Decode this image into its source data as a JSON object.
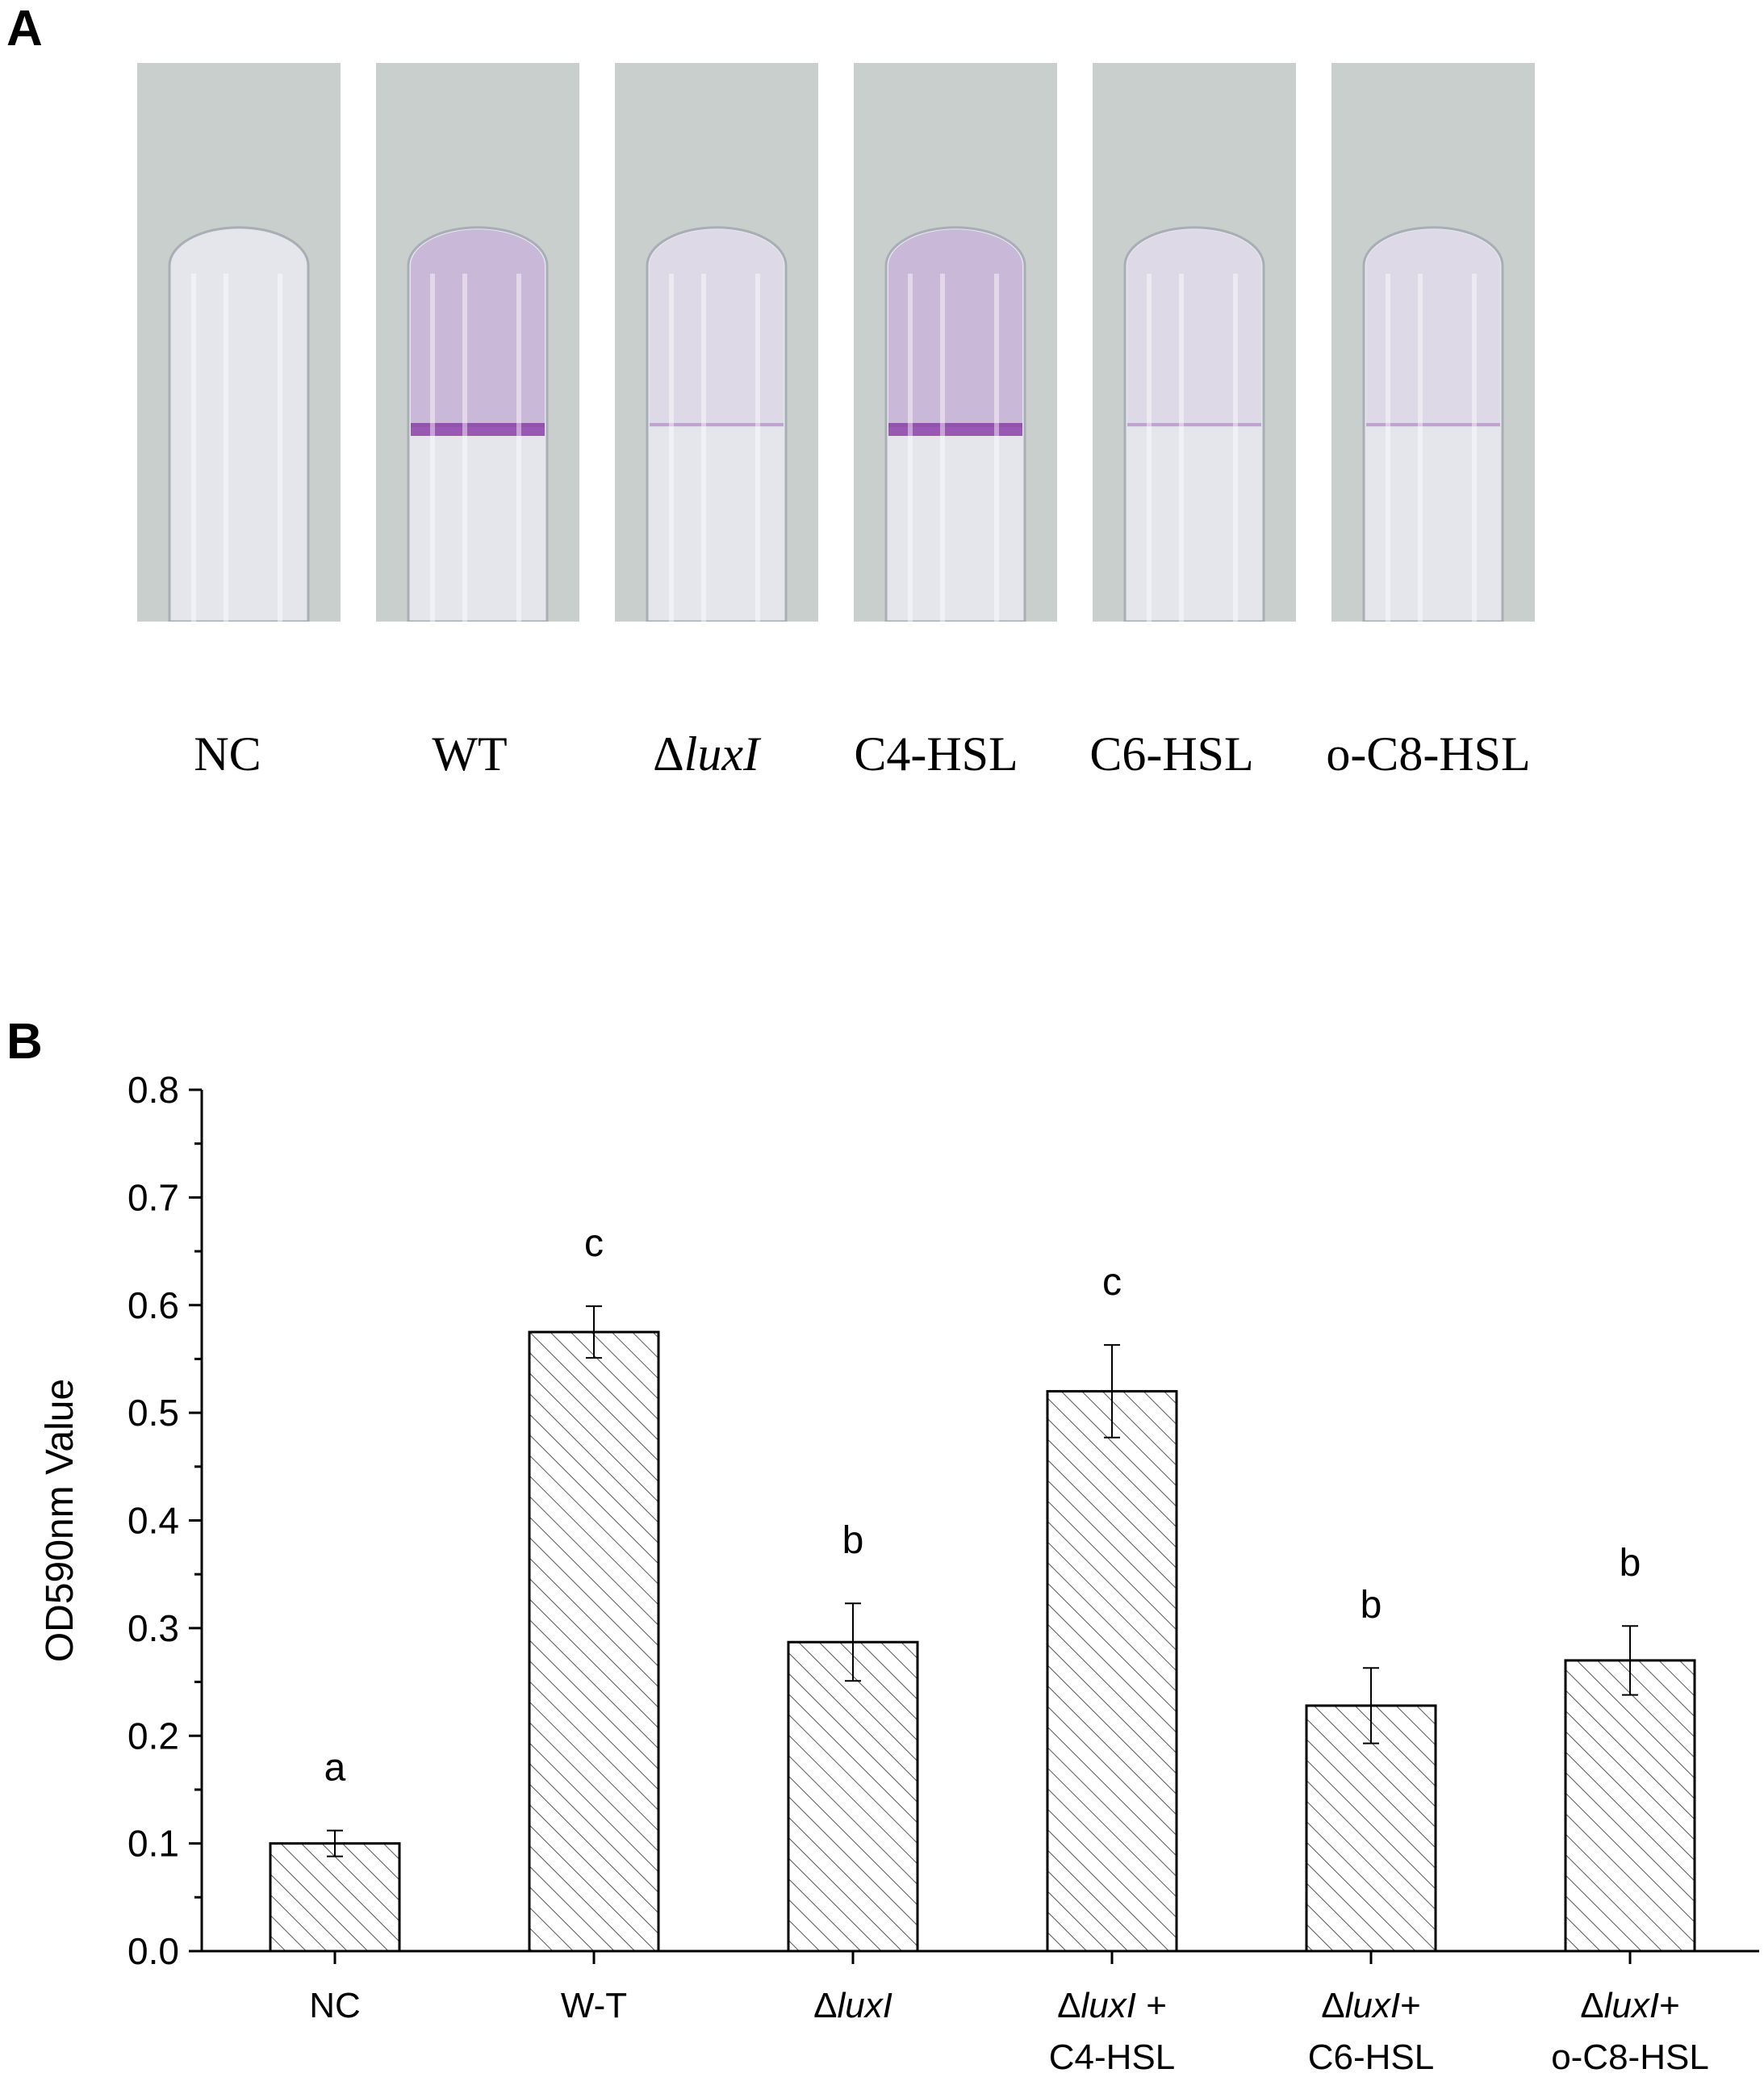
{
  "panel_a": {
    "letter": "A",
    "tubes": [
      {
        "label_prefix": "",
        "label_italic": "",
        "label": "NC",
        "stain": "none"
      },
      {
        "label_prefix": "",
        "label_italic": "",
        "label": "WT",
        "stain": "strong"
      },
      {
        "label_prefix": "Δ",
        "label_italic": "luxI",
        "label": "",
        "stain": "faint"
      },
      {
        "label_prefix": "",
        "label_italic": "",
        "label": "C4-HSL",
        "stain": "strong"
      },
      {
        "label_prefix": "",
        "label_italic": "",
        "label": "C6-HSL",
        "stain": "faint"
      },
      {
        "label_prefix": "",
        "label_italic": "",
        "label": "o-C8-HSL",
        "stain": "faint"
      }
    ],
    "colors": {
      "background": "#c9cfcc",
      "glass": "#e4e6ec",
      "stain": "#8a3fa8"
    }
  },
  "panel_b": {
    "letter": "B"
  },
  "chart_data": {
    "type": "bar",
    "ylabel": "OD590nm Value",
    "xlabel": "",
    "ylim": [
      0,
      0.8
    ],
    "yticks": [
      "0.0",
      "0.1",
      "0.2",
      "0.3",
      "0.4",
      "0.5",
      "0.6",
      "0.7",
      "0.8"
    ],
    "categories": [
      {
        "line1_prefix": "",
        "line1_italic": "",
        "line1_suffix": "NC",
        "line2": ""
      },
      {
        "line1_prefix": "",
        "line1_italic": "",
        "line1_suffix": "W-T",
        "line2": ""
      },
      {
        "line1_prefix": "Δ",
        "line1_italic": "luxI",
        "line1_suffix": "",
        "line2": ""
      },
      {
        "line1_prefix": "Δ",
        "line1_italic": "luxI",
        "line1_suffix": " +",
        "line2": "C4-HSL"
      },
      {
        "line1_prefix": "Δ",
        "line1_italic": "luxI",
        "line1_suffix": "+",
        "line2": "C6-HSL"
      },
      {
        "line1_prefix": "Δ",
        "line1_italic": "luxI",
        "line1_suffix": "+",
        "line2": "o-C8-HSL"
      }
    ],
    "values": [
      0.1,
      0.575,
      0.287,
      0.52,
      0.228,
      0.27
    ],
    "errors": [
      0.012,
      0.024,
      0.036,
      0.043,
      0.035,
      0.032
    ],
    "significance_letters": [
      "a",
      "c",
      "b",
      "c",
      "b",
      "b"
    ],
    "bar_fill": "hatched",
    "colors": {
      "bar_stroke": "#000000",
      "hatch": "#555555",
      "axis": "#000000"
    },
    "grid": false,
    "legend": "none"
  }
}
